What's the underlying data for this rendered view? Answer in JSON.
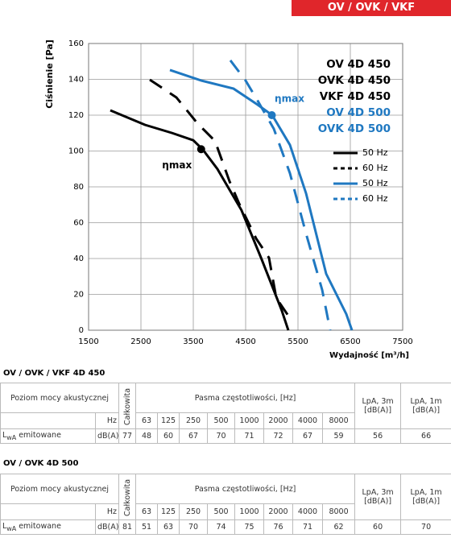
{
  "banner": "OV / OVK / VKF",
  "chart_data": {
    "type": "line",
    "ylabel": "Ciśnienie [Pa]",
    "xlabel": "Wydajność [m³/h]",
    "xlim": [
      1500,
      7500
    ],
    "ylim": [
      0,
      160
    ],
    "xticks": [
      1500,
      2500,
      3500,
      4500,
      5500,
      6500,
      7500
    ],
    "yticks": [
      0,
      20,
      40,
      60,
      80,
      100,
      120,
      140,
      160
    ],
    "grid": true,
    "models": [
      {
        "name": "OV 4D 450",
        "color": "#000000"
      },
      {
        "name": "OVK 4D 450",
        "color": "#000000"
      },
      {
        "name": "VKF 4D 450",
        "color": "#000000"
      },
      {
        "name": "OV 4D 500",
        "color": "#1f78c1"
      },
      {
        "name": "OVK 4D 500",
        "color": "#1f78c1"
      }
    ],
    "series": [
      {
        "name": "50 Hz",
        "color": "#000000",
        "line_style": "solid",
        "x": [
          1915,
          2577,
          3100,
          3500,
          3685,
          3960,
          4420,
          4800,
          5190,
          5315
        ],
        "values": [
          122.7,
          114.6,
          110,
          106,
          100.7,
          90,
          67,
          40,
          11,
          0
        ]
      },
      {
        "name": "60 Hz",
        "color": "#000000",
        "line_style": "dashed",
        "x": [
          2669,
          3177,
          3577,
          3915,
          4192,
          4377,
          4700,
          4946,
          5085,
          5377
        ],
        "values": [
          139.8,
          129.9,
          115.5,
          105.6,
          83.1,
          70.6,
          51.2,
          40.4,
          18,
          5.4
        ]
      },
      {
        "name": "50 Hz",
        "color": "#1f78c1",
        "line_style": "solid",
        "x": [
          3054,
          3654,
          4269,
          4731,
          5008,
          5346,
          5654,
          6038,
          6423,
          6531
        ],
        "values": [
          145.2,
          139.3,
          134.8,
          125.8,
          120,
          103.4,
          76.4,
          31.5,
          9,
          0
        ]
      },
      {
        "name": "60 Hz",
        "color": "#1f78c1",
        "line_style": "dashed",
        "x": [
          4208,
          4500,
          4731,
          5038,
          5346,
          5654,
          5962,
          6115
        ],
        "values": [
          150.6,
          139.3,
          128,
          112.4,
          87.6,
          53.9,
          22.5,
          0
        ]
      }
    ],
    "annotations": [
      {
        "text": "ηmax",
        "x": 3650,
        "y": 101,
        "color": "#000000"
      },
      {
        "text": "ηmax",
        "x": 5000,
        "y": 120,
        "color": "#1f78c1"
      }
    ]
  },
  "tables": [
    {
      "title": "OV / OVK / VKF 4D 450",
      "level": "Poziom mocy akustycznej",
      "total_header": "Całkowita",
      "bands_header": "Pasma częstotliwości, [Hz]",
      "lpa3_header": "LpA, 3m [dB(A)]",
      "lpa1_header": "LpA, 1m [dB(A)]",
      "hz": "Hz",
      "frequencies": [
        63,
        125,
        250,
        500,
        1000,
        2000,
        4000,
        8000
      ],
      "row": {
        "label_main": "L",
        "label_sub": "wA",
        "label_rest": " emitowane",
        "unit": "dB(A)",
        "total": 77,
        "bands": [
          48,
          60,
          67,
          70,
          71,
          72,
          67,
          59
        ],
        "lpa3": 56,
        "lpa1": 66
      }
    },
    {
      "title": "OV / OVK 4D 500",
      "level": "Poziom mocy akustycznej",
      "total_header": "Całkowita",
      "bands_header": "Pasma częstotliwości, [Hz]",
      "lpa3_header": "LpA, 3m [dB(A)]",
      "lpa1_header": "LpA, 1m [dB(A)]",
      "hz": "Hz",
      "frequencies": [
        63,
        125,
        250,
        500,
        1000,
        2000,
        4000,
        8000
      ],
      "row": {
        "label_main": "L",
        "label_sub": "wA",
        "label_rest": " emitowane",
        "unit": "dB(A)",
        "total": 81,
        "bands": [
          51,
          63,
          70,
          74,
          75,
          76,
          71,
          62
        ],
        "lpa3": 60,
        "lpa1": 70
      }
    }
  ]
}
